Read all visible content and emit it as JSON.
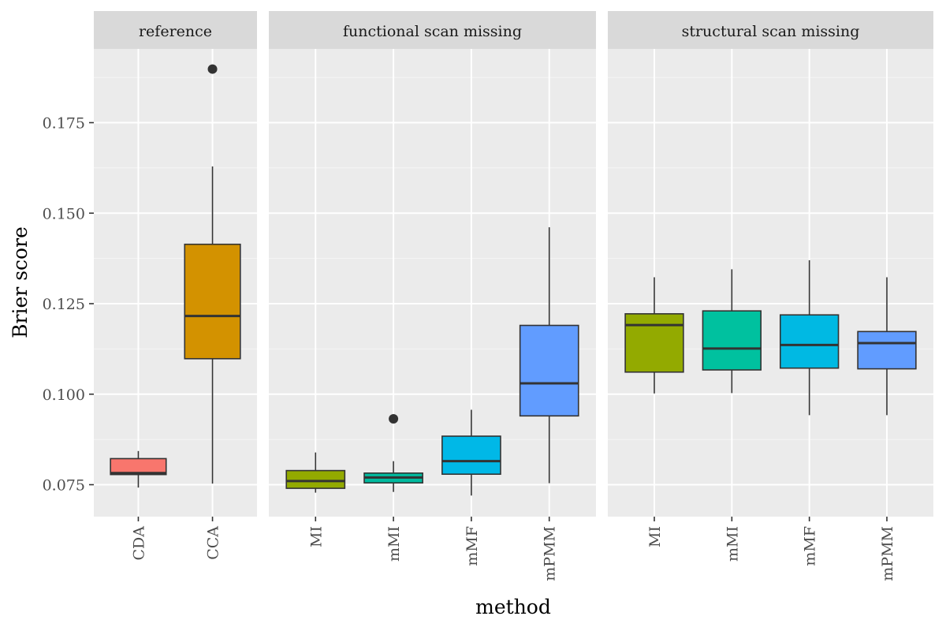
{
  "chart_data": {
    "type": "boxplot",
    "ylabel": "Brier score",
    "xlabel": "method",
    "ylim": [
      0.0655,
      0.195
    ],
    "yticks": [
      0.075,
      0.1,
      0.125,
      0.15,
      0.175
    ],
    "ytick_labels": [
      "0.075",
      "0.100",
      "0.125",
      "0.150",
      "0.175"
    ],
    "grid": true,
    "legend": "none",
    "panels": [
      {
        "title": "reference",
        "boxes": [
          {
            "category": "CDA",
            "color": "#F8766D",
            "min": 0.0742,
            "q1": 0.0778,
            "median": 0.0782,
            "q3": 0.0822,
            "max": 0.0843,
            "outliers": []
          },
          {
            "category": "CCA",
            "color": "#D39200",
            "min": 0.0753,
            "q1": 0.1098,
            "median": 0.1216,
            "q3": 0.1414,
            "max": 0.1629,
            "outliers": [
              0.1898
            ]
          }
        ]
      },
      {
        "title": "functional scan missing",
        "boxes": [
          {
            "category": "MI",
            "color": "#93AA00",
            "min": 0.0728,
            "q1": 0.074,
            "median": 0.076,
            "q3": 0.0789,
            "max": 0.0839,
            "outliers": []
          },
          {
            "category": "mMI",
            "color": "#00BA9E",
            "min": 0.073,
            "q1": 0.0755,
            "median": 0.077,
            "q3": 0.0782,
            "max": 0.0815,
            "outliers": [
              0.0932
            ]
          },
          {
            "category": "mMF",
            "color": "#00B8E7",
            "min": 0.072,
            "q1": 0.0779,
            "median": 0.0815,
            "q3": 0.0884,
            "max": 0.0957,
            "outliers": []
          },
          {
            "category": "mPMM",
            "color": "#619CFF",
            "min": 0.0754,
            "q1": 0.094,
            "median": 0.103,
            "q3": 0.119,
            "max": 0.1461,
            "outliers": []
          }
        ]
      },
      {
        "title": "structural scan missing",
        "boxes": [
          {
            "category": "MI",
            "color": "#93AA00",
            "min": 0.1002,
            "q1": 0.1061,
            "median": 0.1191,
            "q3": 0.1222,
            "max": 0.1323,
            "outliers": []
          },
          {
            "category": "mMI",
            "color": "#00C19F",
            "min": 0.1003,
            "q1": 0.1067,
            "median": 0.1126,
            "q3": 0.123,
            "max": 0.1345,
            "outliers": []
          },
          {
            "category": "mMF",
            "color": "#00B9E3",
            "min": 0.0942,
            "q1": 0.1072,
            "median": 0.1136,
            "q3": 0.1219,
            "max": 0.137,
            "outliers": []
          },
          {
            "category": "mPMM",
            "color": "#619CFF",
            "min": 0.0942,
            "q1": 0.107,
            "median": 0.1141,
            "q3": 0.1173,
            "max": 0.1323,
            "outliers": []
          }
        ]
      }
    ]
  }
}
